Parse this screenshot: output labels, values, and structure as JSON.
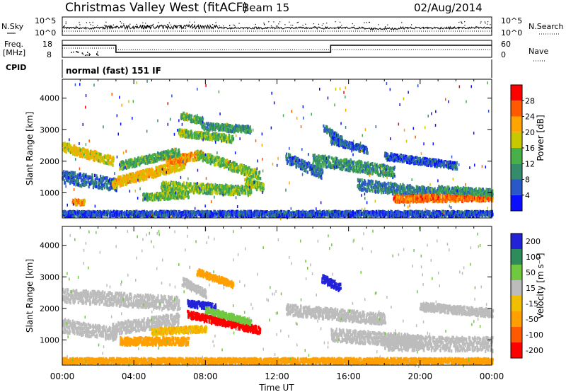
{
  "header": {
    "title": "Christmas Valley West (fitACF)",
    "beam": "Beam 15",
    "date": "02/Aug/2014"
  },
  "sky_panel": {
    "left_label": "N.Sky",
    "right_label": "N.Search",
    "left_ticks": [
      "10^5",
      "10^0"
    ],
    "right_ticks": [
      "10^5",
      "10^0"
    ]
  },
  "freq_panel": {
    "left_label": "Freq.",
    "left_unit": "[MHz]",
    "right_label": "Nave",
    "left_ticks": [
      "18",
      "8"
    ],
    "right_ticks": [
      "60",
      "0"
    ]
  },
  "cpid": {
    "label": "CPID",
    "mode": "normal (fast) 151 IF"
  },
  "colors": {
    "power": [
      "#0a10ff",
      "#2a58c8",
      "#358c6a",
      "#48b048",
      "#c8c800",
      "#ffa400",
      "#ff5a00",
      "#ff0000"
    ],
    "velocity": [
      "#ff0000",
      "#ff5a00",
      "#ffa000",
      "#f0c000",
      "#bcbcbc",
      "#70c840",
      "#2d8c5a",
      "#2222d8"
    ],
    "ground_scatter": "#bcbcbc"
  },
  "chart_data": [
    {
      "type": "heatmap",
      "name": "power",
      "ylabel": "Slant Range [km]",
      "yticks": [
        1000,
        2000,
        3000,
        4000
      ],
      "ylim": [
        200,
        4600
      ],
      "xlim": [
        0,
        24
      ],
      "xticks": [
        0,
        4,
        8,
        12,
        16,
        20,
        24
      ],
      "colorbar_label": "Power [dB]",
      "colorbar_ticks": [
        "4",
        "8",
        "12",
        "16",
        "20",
        "24",
        "28"
      ],
      "colorbar_range": [
        0,
        30
      ],
      "regions": [
        {
          "t": [
            0.0,
            2.8
          ],
          "r0": 2500,
          "r1": 2050,
          "w": 280,
          "v": 18
        },
        {
          "t": [
            0.0,
            3.0
          ],
          "r0": 1550,
          "r1": 1300,
          "w": 400,
          "v": 7
        },
        {
          "t": [
            0.6,
            1.2
          ],
          "r0": 750,
          "r1": 750,
          "w": 180,
          "v": 22
        },
        {
          "t": [
            2.8,
            6.8
          ],
          "r0": 1350,
          "r1": 1950,
          "w": 300,
          "v": 19
        },
        {
          "t": [
            5.8,
            7.8
          ],
          "r0": 2050,
          "r1": 2250,
          "w": 260,
          "v": 22
        },
        {
          "t": [
            3.2,
            6.5
          ],
          "r0": 1900,
          "r1": 2350,
          "w": 250,
          "v": 12
        },
        {
          "t": [
            6.6,
            7.8
          ],
          "r0": 3500,
          "r1": 3300,
          "w": 200,
          "v": 12
        },
        {
          "t": [
            7.8,
            10.5
          ],
          "r0": 3150,
          "r1": 3050,
          "w": 220,
          "v": 10
        },
        {
          "t": [
            6.5,
            9.5
          ],
          "r0": 2950,
          "r1": 2750,
          "w": 220,
          "v": 14
        },
        {
          "t": [
            7.5,
            11.0
          ],
          "r0": 2250,
          "r1": 1600,
          "w": 280,
          "v": 14
        },
        {
          "t": [
            5.5,
            10.5
          ],
          "r0": 1250,
          "r1": 1100,
          "w": 300,
          "v": 14
        },
        {
          "t": [
            4.5,
            7.0
          ],
          "r0": 900,
          "r1": 1000,
          "w": 220,
          "v": 13
        },
        {
          "t": [
            10.2,
            11.2
          ],
          "r0": 1400,
          "r1": 1200,
          "w": 260,
          "v": 15
        },
        {
          "t": [
            12.5,
            14.5
          ],
          "r0": 2150,
          "r1": 1650,
          "w": 320,
          "v": 7
        },
        {
          "t": [
            14.6,
            15.6
          ],
          "r0": 3100,
          "r1": 2700,
          "w": 220,
          "v": 8
        },
        {
          "t": [
            15.0,
            17.0
          ],
          "r0": 2700,
          "r1": 2400,
          "w": 200,
          "v": 6
        },
        {
          "t": [
            14.0,
            18.5
          ],
          "r0": 2100,
          "r1": 1700,
          "w": 350,
          "v": 10
        },
        {
          "t": [
            16.5,
            21.0
          ],
          "r0": 1300,
          "r1": 1000,
          "w": 350,
          "v": 8
        },
        {
          "t": [
            18.0,
            22.0
          ],
          "r0": 2200,
          "r1": 1900,
          "w": 220,
          "v": 5
        },
        {
          "t": [
            18.5,
            24.0
          ],
          "r0": 850,
          "r1": 900,
          "w": 220,
          "v": 24
        },
        {
          "t": [
            21.0,
            24.0
          ],
          "r0": 1150,
          "r1": 1050,
          "w": 200,
          "v": 10
        },
        {
          "t": [
            0.0,
            24.0
          ],
          "r0": 380,
          "r1": 380,
          "w": 160,
          "v": 5
        }
      ]
    },
    {
      "type": "heatmap",
      "name": "velocity",
      "ylabel": "Slant Range [km]",
      "xlabel": "Time UT",
      "yticks": [
        1000,
        2000,
        3000,
        4000
      ],
      "ylim": [
        200,
        4600
      ],
      "xlim": [
        0,
        24
      ],
      "xticks": [
        0,
        4,
        8,
        12,
        16,
        20,
        24
      ],
      "xtick_labels": [
        "00:00",
        "04:00",
        "08:00",
        "12:00",
        "16:00",
        "20:00",
        "00:00"
      ],
      "colorbar_label": "Velocity [m s⁻¹]",
      "colorbar_ticks": [
        "-200",
        "-100",
        "-50",
        "-15",
        "15",
        "50",
        "100",
        "200"
      ],
      "regions": [
        {
          "t": [
            0.0,
            6.5
          ],
          "r0": 2450,
          "r1": 2200,
          "w": 420,
          "v": 0
        },
        {
          "t": [
            0.0,
            3.0
          ],
          "r0": 1500,
          "r1": 1200,
          "w": 420,
          "v": 0
        },
        {
          "t": [
            2.8,
            6.5
          ],
          "r0": 1400,
          "r1": 1700,
          "w": 380,
          "v": 0
        },
        {
          "t": [
            7.0,
            8.5
          ],
          "r0": 2200,
          "r1": 2100,
          "w": 200,
          "v": 220
        },
        {
          "t": [
            7.0,
            11.0
          ],
          "r0": 1850,
          "r1": 1350,
          "w": 220,
          "v": -210
        },
        {
          "t": [
            8.0,
            10.5
          ],
          "r0": 2000,
          "r1": 1600,
          "w": 180,
          "v": 60
        },
        {
          "t": [
            6.7,
            8.0
          ],
          "r0": 2900,
          "r1": 2500,
          "w": 250,
          "v": 10
        },
        {
          "t": [
            7.5,
            9.5
          ],
          "r0": 3200,
          "r1": 2800,
          "w": 200,
          "v": -40
        },
        {
          "t": [
            3.2,
            7.0
          ],
          "r0": 1000,
          "r1": 1000,
          "w": 240,
          "v": -60
        },
        {
          "t": [
            5.0,
            8.0
          ],
          "r0": 1300,
          "r1": 1400,
          "w": 200,
          "v": -30
        },
        {
          "t": [
            14.5,
            15.5
          ],
          "r0": 3000,
          "r1": 2700,
          "w": 250,
          "v": 230
        },
        {
          "t": [
            12.5,
            18.0
          ],
          "r0": 2000,
          "r1": 1700,
          "w": 350,
          "v": 0
        },
        {
          "t": [
            15.0,
            20.0
          ],
          "r0": 1200,
          "r1": 1000,
          "w": 400,
          "v": 0
        },
        {
          "t": [
            18.0,
            24.0
          ],
          "r0": 950,
          "r1": 900,
          "w": 450,
          "v": 0
        },
        {
          "t": [
            20.0,
            24.0
          ],
          "r0": 2100,
          "r1": 1900,
          "w": 250,
          "v": 0
        },
        {
          "t": [
            0.0,
            24.0
          ],
          "r0": 380,
          "r1": 380,
          "w": 160,
          "v": -40
        }
      ]
    }
  ]
}
